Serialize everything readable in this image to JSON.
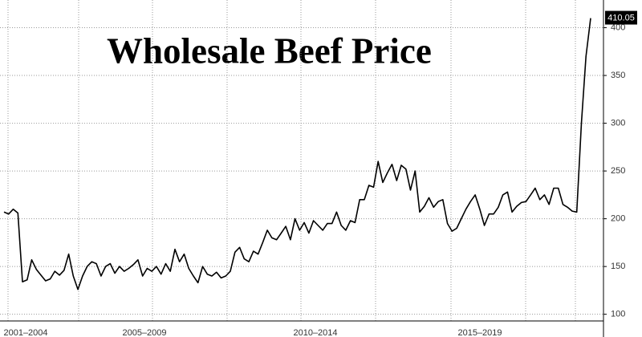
{
  "chart_data": {
    "type": "line",
    "title": "Wholesale Beef Price",
    "period_labels": [
      "2001–2004",
      "2005–2009",
      "2010–2014",
      "2015–2019"
    ],
    "series": [
      {
        "color": "#000000",
        "values": [
          207,
          205,
          210,
          206,
          134,
          136,
          157,
          147,
          141,
          135,
          137,
          145,
          141,
          146,
          163,
          140,
          126,
          140,
          150,
          155,
          153,
          140,
          150,
          153,
          143,
          150,
          145,
          148,
          152,
          157,
          140,
          148,
          145,
          150,
          142,
          153,
          145,
          168,
          155,
          163,
          148,
          140,
          133,
          150,
          142,
          140,
          144,
          138,
          140,
          145,
          165,
          170,
          158,
          155,
          166,
          163,
          175,
          188,
          180,
          178,
          185,
          192,
          178,
          200,
          188,
          196,
          185,
          198,
          193,
          188,
          195,
          195,
          207,
          193,
          188,
          198,
          196,
          220,
          220,
          235,
          233,
          260,
          238,
          248,
          257,
          240,
          256,
          252,
          230,
          250,
          207,
          213,
          222,
          212,
          218,
          220,
          195,
          187,
          190,
          200,
          210,
          218,
          225,
          210,
          193,
          205,
          205,
          212,
          225,
          228,
          207,
          213,
          217,
          218,
          225,
          232,
          220,
          225,
          215,
          232,
          232,
          215,
          212,
          208,
          207,
          300,
          370,
          410.05
        ]
      }
    ],
    "ylim": [
      93,
      429
    ],
    "yticks": [
      100,
      150,
      200,
      250,
      300,
      350,
      400
    ],
    "grid": true,
    "y_axis_side": "right"
  }
}
